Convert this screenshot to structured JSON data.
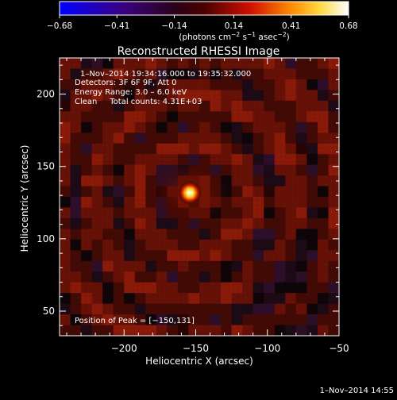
{
  "chart_data": {
    "type": "heatmap",
    "title": "Reconstructed RHESSI Image",
    "xlabel": "Heliocentric X (arcsec)",
    "ylabel": "Heliocentric Y (arcsec)",
    "xlim": [
      -245,
      -50
    ],
    "ylim": [
      33,
      225
    ],
    "x_ticks": [
      -200,
      -150,
      -100,
      -50
    ],
    "x_tick_labels": [
      "−200",
      "−150",
      "−100",
      "−50"
    ],
    "y_ticks": [
      50,
      100,
      150,
      200
    ],
    "y_tick_labels": [
      "50",
      "100",
      "150",
      "200"
    ],
    "colorbar": {
      "range": [
        -0.68,
        0.68
      ],
      "ticks": [
        -0.68,
        -0.41,
        -0.14,
        0.14,
        0.41,
        0.68
      ],
      "tick_labels": [
        "−0.68",
        "−0.41",
        "−0.14",
        "0.14",
        "0.41",
        "0.68"
      ],
      "unit_label": {
        "prefix": "(photons cm",
        "exp1": "−2",
        "mid1": " s",
        "exp2": "−1",
        "mid2": " asec",
        "exp3": "−2",
        "suffix": ")"
      }
    },
    "peak": {
      "x": -150,
      "y": 131,
      "value": 0.68
    },
    "annotations": [
      "1–Nov–2014 19:34:16.000 to 19:35:32.000",
      "Detectors: 3F 6F 9F, Att 0",
      "Energy Range: 3.0 – 6.0 keV",
      "Clean     Total counts: 4.31E+03"
    ],
    "peak_label": "Position of Peak = [−150,131]",
    "timestamp": "1–Nov–2014 14:55"
  }
}
